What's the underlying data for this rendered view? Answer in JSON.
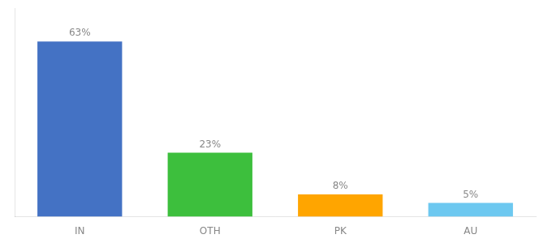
{
  "chart_data": {
    "type": "bar",
    "categories": [
      "IN",
      "OTH",
      "PK",
      "AU"
    ],
    "values": [
      63,
      23,
      8,
      5
    ],
    "value_labels": [
      "63%",
      "23%",
      "8%",
      "5%"
    ],
    "data_labels": true,
    "colors": [
      "#4472C4",
      "#3DBF3D",
      "#FFA500",
      "#6DC8F0"
    ],
    "ylim": [
      0,
      75
    ],
    "grid": false,
    "tick_labels": "x"
  }
}
